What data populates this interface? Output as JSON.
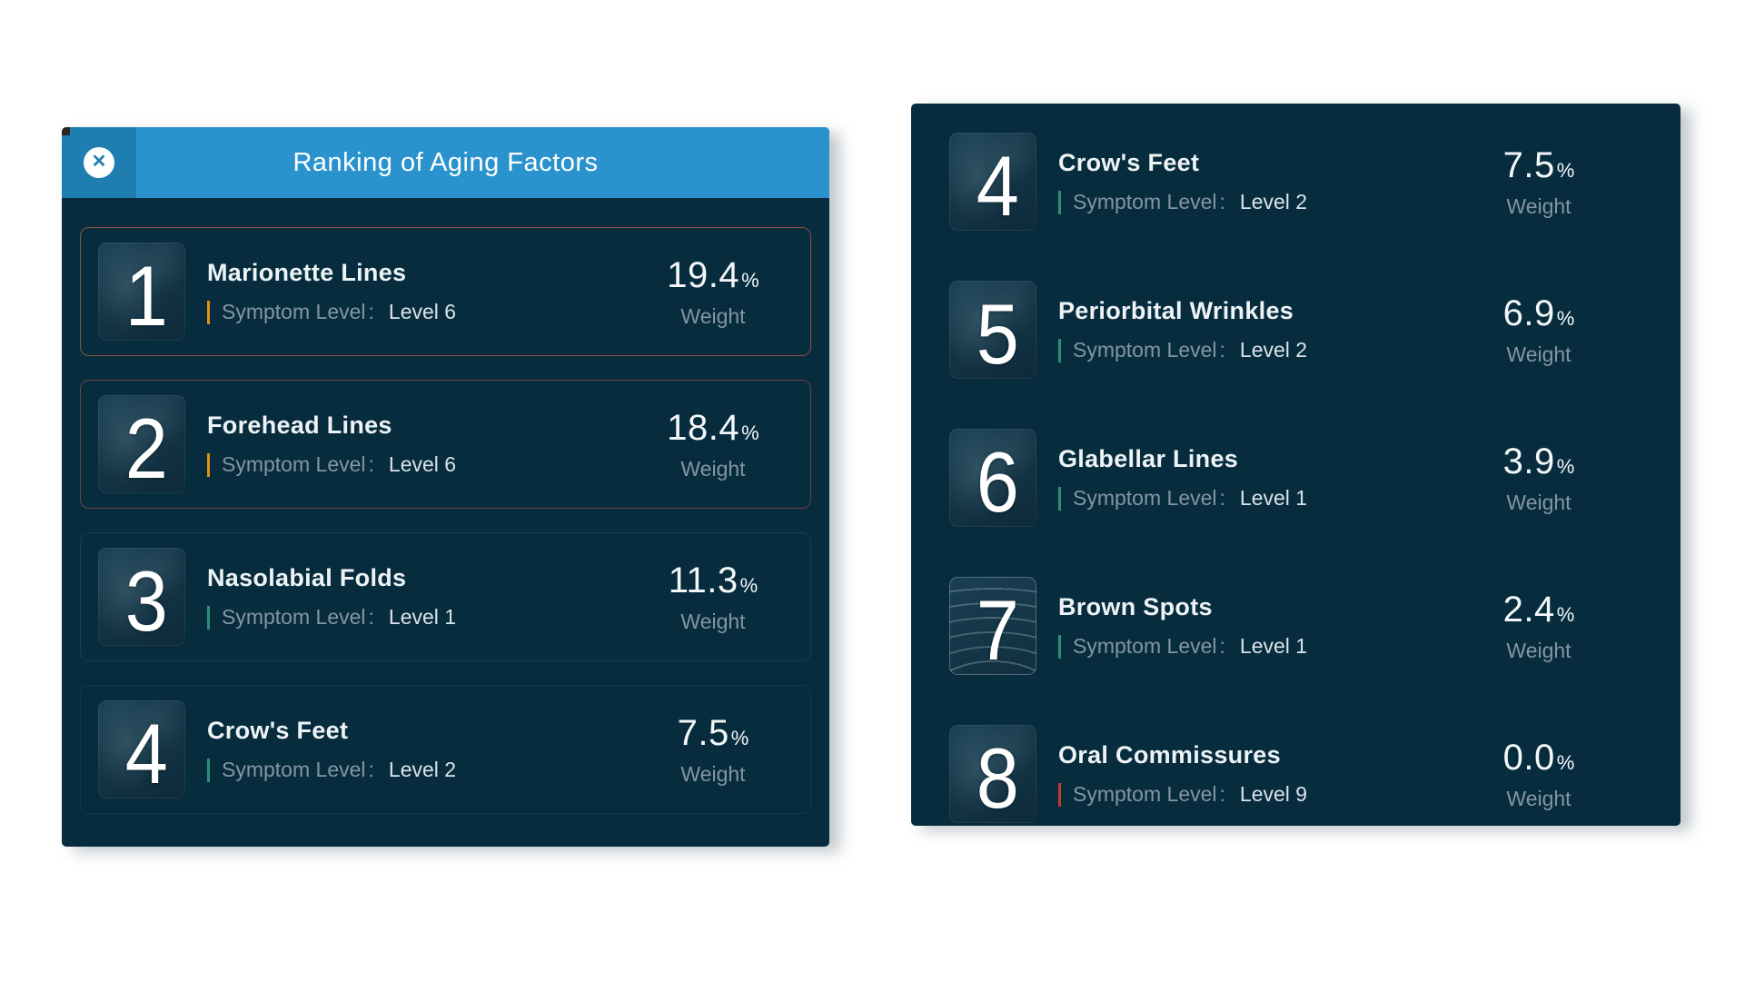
{
  "labels": {
    "symptom_level": "Symptom Level",
    "colon": ":",
    "weight": "Weight",
    "percent": "%"
  },
  "colors": {
    "panel_background": "#062c3e",
    "header_blue": "#2a93cd",
    "close_section_blue": "#1e7eb0",
    "tick_orange": "#e09114",
    "tick_teal": "#2e8f77",
    "tick_red": "#bf3b30",
    "border_brick": "#8f5244",
    "border_brick_dark": "#6e4340",
    "border_faint_navy": "#173d50"
  },
  "left_panel": {
    "header": {
      "title": "Ranking of Aging Factors",
      "close_icon": "✕"
    },
    "rows": [
      {
        "rank": "1",
        "name": "Marionette Lines",
        "level": "Level 6",
        "weight_value": "19.4",
        "tick_color": "#e09114",
        "border_color": "#8f5244",
        "thumb": "face-photo"
      },
      {
        "rank": "2",
        "name": "Forehead Lines",
        "level": "Level 6",
        "weight_value": "18.4",
        "tick_color": "#e09114",
        "border_color": "#6e4340",
        "thumb": "face-photo"
      },
      {
        "rank": "3",
        "name": "Nasolabial Folds",
        "level": "Level 1",
        "weight_value": "11.3",
        "tick_color": "#2e8f77",
        "border_color": "#173d50",
        "thumb": "face-photo"
      },
      {
        "rank": "4",
        "name": "Crow's Feet",
        "level": "Level 2",
        "weight_value": "7.5",
        "tick_color": "#2e8f77",
        "border_color": "#14394c",
        "thumb": "face-photo"
      }
    ]
  },
  "right_panel": {
    "rows": [
      {
        "rank": "4",
        "name": "Crow's Feet",
        "level": "Level 2",
        "weight_value": "7.5",
        "tick_color": "#2e8f77",
        "thumb": "face-photo"
      },
      {
        "rank": "5",
        "name": "Periorbital Wrinkles",
        "level": "Level 2",
        "weight_value": "6.9",
        "tick_color": "#2e8f77",
        "thumb": "face-photo"
      },
      {
        "rank": "6",
        "name": "Glabellar Lines",
        "level": "Level 1",
        "weight_value": "3.9",
        "tick_color": "#2e8f77",
        "thumb": "face-photo"
      },
      {
        "rank": "7",
        "name": "Brown Spots",
        "level": "Level 1",
        "weight_value": "2.4",
        "tick_color": "#2e8f77",
        "thumb": "forehead-arcs"
      },
      {
        "rank": "8",
        "name": "Oral Commissures",
        "level": "Level 9",
        "weight_value": "0.0",
        "tick_color": "#bf3b30",
        "thumb": "face-photo"
      }
    ]
  }
}
